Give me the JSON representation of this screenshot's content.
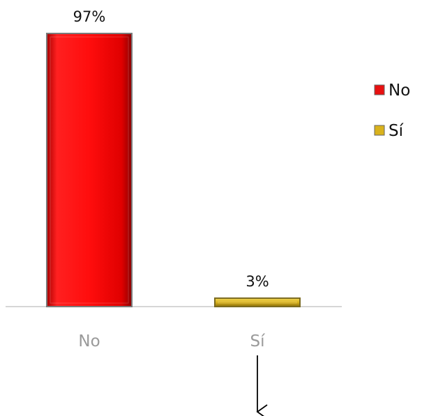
{
  "chart_data": {
    "type": "bar",
    "title": "",
    "xlabel": "",
    "ylabel": "",
    "categories": [
      "No",
      "Sí"
    ],
    "values": [
      97,
      3
    ],
    "data_labels": [
      "97%",
      "3%"
    ],
    "ylim": [
      0,
      100
    ],
    "grid": false,
    "colors": [
      "#e81010",
      "#d9b21c"
    ],
    "legend": {
      "placement": "right",
      "entries": [
        "No",
        "Sí"
      ]
    },
    "annotation": "down-arrow-under-Sí"
  }
}
